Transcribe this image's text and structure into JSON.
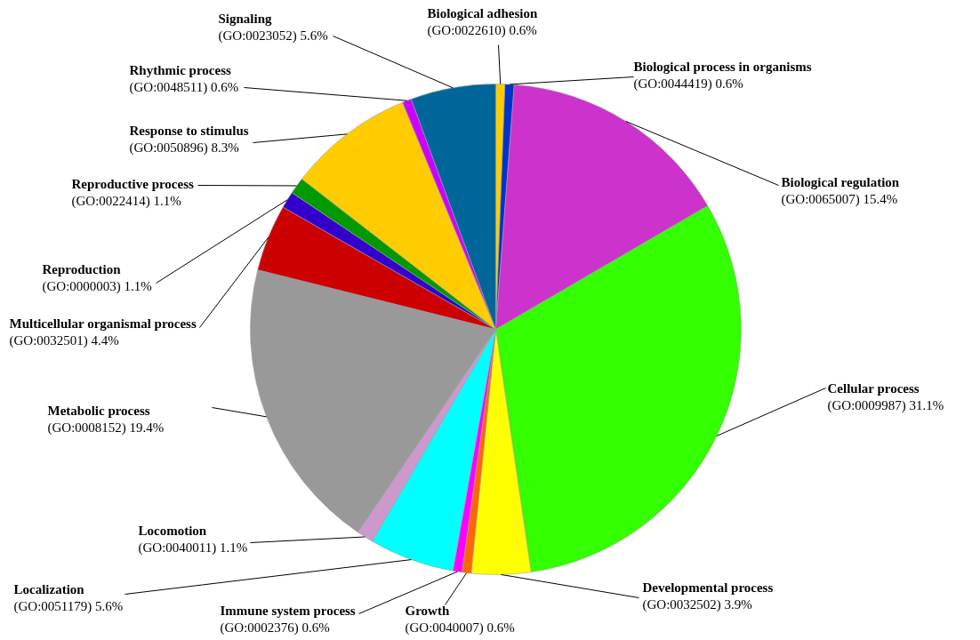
{
  "chart_data": {
    "type": "pie",
    "categories": [
      "Biological adhesion\n(GO:0022610)",
      "Biological process in organisms\n(GO:0044419)",
      "Biological regulation\n(GO:0065007)",
      "Cellular process\n(GO:0009987)",
      "Developmental process\n(GO:0032502)",
      "Growth\n(GO:0040007)",
      "Immune system process\n(GO:0002376)",
      "Localization\n(GO:0051179)",
      "Locomotion\n(GO:0040011)",
      "Metabolic process\n(GO:0008152)",
      "Multicellular organismal process\n(GO:0032501)",
      "Reproduction\n(GO:0000003)",
      "Reproductive process\n(GO:0022414)",
      "Response to stimulus\n(GO:0050896)",
      "Rhythmic process\n(GO:0048511)",
      "Signaling\n(GO:0023052)"
    ],
    "values": [
      0.6,
      0.6,
      15.4,
      31.1,
      3.9,
      0.6,
      0.6,
      5.6,
      1.1,
      19.4,
      4.4,
      1.1,
      1.1,
      8.3,
      0.6,
      5.6
    ],
    "value_labels": [
      "0.6%",
      "0.6%",
      "15.4%",
      "31.1%",
      "3.9%",
      "0.6%",
      "0.6%",
      "5.6%",
      "1.1%",
      "19.4%",
      "4.4%",
      "1.1%",
      "1.1%",
      "8.3%",
      "0.6%",
      "5.6%"
    ],
    "colors": [
      "#ffcc00",
      "#0033cc",
      "#cc33cc",
      "#33ff00",
      "#ffff00",
      "#ff6600",
      "#ff00ff",
      "#00ffff",
      "#cc99cc",
      "#999999",
      "#cc0000",
      "#3300cc",
      "#009900",
      "#ffcc00",
      "#cc00ff",
      "#006699"
    ]
  }
}
